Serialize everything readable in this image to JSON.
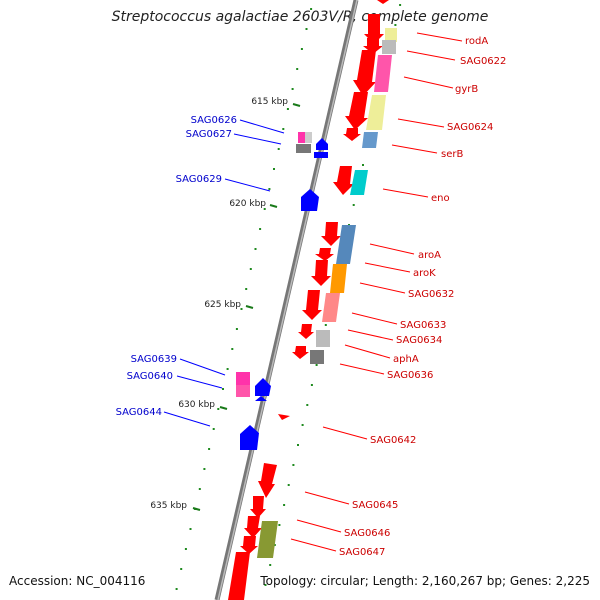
{
  "title": "Streptococcus agalactiae 2603V/R, complete genome",
  "footer": {
    "accession": "Accession: NC_004116",
    "summary": "Topology: circular; Length: 2,160,267 bp; Genes: 2,225"
  },
  "colors": {
    "backbone": "#7a7a7a",
    "tick": "#1f8a1f",
    "forward_label": "#cc0000",
    "reverse_label": "#0000cc",
    "forward_gene": "#ff0000",
    "reverse_gene": "#0000ff"
  },
  "kbp_labels": [
    "615 kbp",
    "620 kbp",
    "625 kbp",
    "630 kbp",
    "635 kbp"
  ],
  "forward_gene_labels": [
    "rodA",
    "SAG0622",
    "gyrB",
    "SAG0624",
    "serB",
    "eno",
    "aroA",
    "aroK",
    "SAG0632",
    "SAG0633",
    "SAG0634",
    "aphA",
    "SAG0636",
    "SAG0642",
    "SAG0645",
    "SAG0646",
    "SAG0647"
  ],
  "reverse_gene_labels": [
    "SAG0626",
    "SAG0627",
    "SAG0629",
    "SAG0639",
    "SAG0640",
    "SAG0644"
  ]
}
